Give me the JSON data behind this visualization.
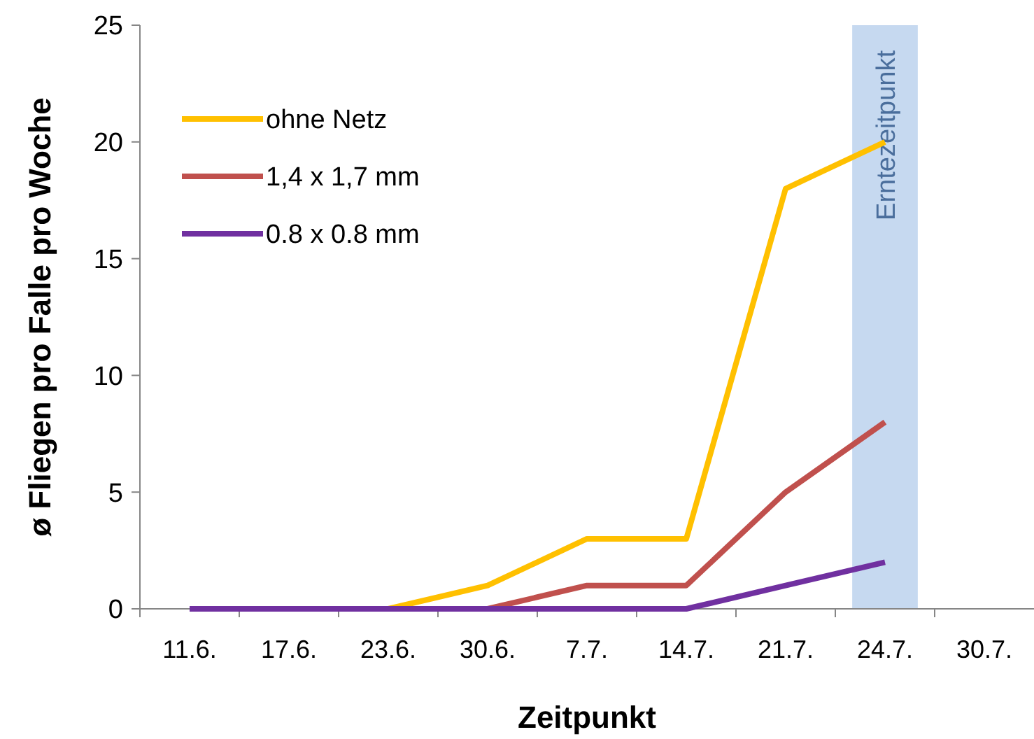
{
  "chart_data": {
    "type": "line",
    "xlabel": "Zeitpunkt",
    "ylabel": "ø Fliegen pro Falle pro Woche",
    "categories": [
      "11.6.",
      "17.6.",
      "23.6.",
      "30.6.",
      "7.7.",
      "14.7.",
      "21.7.",
      "24.7.",
      "30.7."
    ],
    "series": [
      {
        "name": "ohne Netz",
        "color": "#ffc000",
        "values": [
          0,
          0,
          0,
          1,
          3,
          3,
          18,
          20,
          null
        ]
      },
      {
        "name": "1,4 x 1,7 mm",
        "color": "#c0504d",
        "values": [
          null,
          null,
          null,
          0,
          1,
          1,
          5,
          8,
          null
        ]
      },
      {
        "name": "0.8 x 0.8 mm",
        "color": "#7030a0",
        "values": [
          0,
          0,
          0,
          0,
          0,
          0,
          1,
          2,
          null
        ]
      }
    ],
    "ylim": [
      0,
      25
    ],
    "yticks": [
      0,
      5,
      10,
      15,
      20,
      25
    ],
    "grid": false,
    "legend": "top left",
    "marker": "none",
    "line_style": "solid",
    "bands": [
      {
        "axis": "x",
        "from": "24.7.",
        "to": "24.7.",
        "label": "Erntezeitpunkt",
        "color": "#c6d9f0"
      }
    ]
  }
}
